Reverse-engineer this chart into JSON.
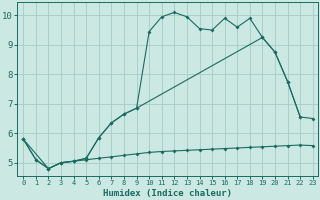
{
  "xlabel": "Humidex (Indice chaleur)",
  "bg_color": "#cbe8e3",
  "grid_color": "#aacfc9",
  "line_color": "#1a6b60",
  "xlim_min": -0.5,
  "xlim_max": 23.4,
  "ylim_min": 4.55,
  "ylim_max": 10.45,
  "xticks": [
    0,
    1,
    2,
    3,
    4,
    5,
    6,
    7,
    8,
    9,
    10,
    11,
    12,
    13,
    14,
    15,
    16,
    17,
    18,
    19,
    20,
    21,
    22,
    23
  ],
  "yticks": [
    5,
    6,
    7,
    8,
    9,
    10
  ],
  "curve_x": [
    0,
    1,
    2,
    3,
    4,
    5,
    6,
    7,
    8,
    9,
    10,
    11,
    12,
    13,
    14,
    15,
    16,
    17,
    18,
    19,
    20,
    21,
    22
  ],
  "curve_y": [
    5.8,
    5.1,
    4.8,
    5.0,
    5.05,
    5.15,
    5.85,
    6.35,
    6.65,
    6.85,
    9.45,
    9.95,
    10.1,
    9.95,
    9.55,
    9.5,
    9.9,
    9.6,
    9.9,
    9.25,
    8.75,
    7.75,
    6.55
  ],
  "flat_x": [
    0,
    1,
    2,
    3,
    4,
    5,
    6,
    7,
    8,
    9,
    10,
    11,
    12,
    13,
    14,
    15,
    16,
    17,
    18,
    19,
    20,
    21,
    22,
    23
  ],
  "flat_y": [
    5.8,
    5.1,
    4.8,
    5.0,
    5.05,
    5.1,
    5.15,
    5.2,
    5.25,
    5.3,
    5.35,
    5.38,
    5.4,
    5.42,
    5.44,
    5.46,
    5.48,
    5.5,
    5.52,
    5.54,
    5.56,
    5.58,
    5.6,
    5.58
  ],
  "diag_x": [
    0,
    2,
    3,
    4,
    5,
    6,
    7,
    8,
    9,
    19,
    20,
    21,
    22,
    23
  ],
  "diag_y": [
    5.8,
    4.8,
    5.0,
    5.05,
    5.15,
    5.85,
    6.35,
    6.65,
    6.85,
    9.25,
    8.75,
    7.75,
    6.55,
    6.5
  ],
  "xlabel_fontsize": 6.5,
  "tick_fontsize_x": 5.0,
  "tick_fontsize_y": 6.5,
  "linewidth": 0.8,
  "markersize": 2.0
}
